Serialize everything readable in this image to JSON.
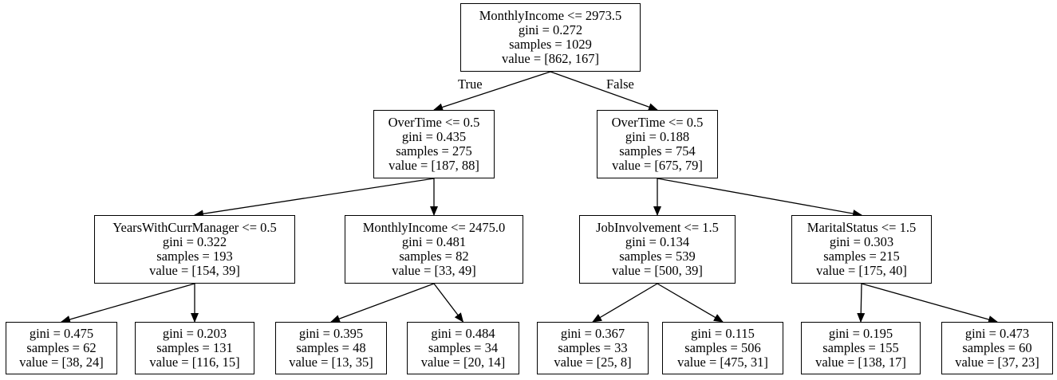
{
  "nodes": [
    {
      "id": "n0",
      "lines": [
        "MonthlyIncome <= 2973.5",
        "gini = 0.272",
        "samples = 1029",
        "value = [862, 167]"
      ]
    },
    {
      "id": "n1",
      "lines": [
        "OverTime <= 0.5",
        "gini = 0.435",
        "samples = 275",
        "value = [187, 88]"
      ]
    },
    {
      "id": "n2",
      "lines": [
        "OverTime <= 0.5",
        "gini = 0.188",
        "samples = 754",
        "value = [675, 79]"
      ]
    },
    {
      "id": "n3",
      "lines": [
        "YearsWithCurrManager <= 0.5",
        "gini = 0.322",
        "samples = 193",
        "value = [154, 39]"
      ]
    },
    {
      "id": "n4",
      "lines": [
        "MonthlyIncome <= 2475.0",
        "gini = 0.481",
        "samples = 82",
        "value = [33, 49]"
      ]
    },
    {
      "id": "n5",
      "lines": [
        "JobInvolvement <= 1.5",
        "gini = 0.134",
        "samples = 539",
        "value = [500, 39]"
      ]
    },
    {
      "id": "n6",
      "lines": [
        "MaritalStatus <= 1.5",
        "gini = 0.303",
        "samples = 215",
        "value = [175, 40]"
      ]
    },
    {
      "id": "n7",
      "lines": [
        "gini = 0.475",
        "samples = 62",
        "value = [38, 24]"
      ]
    },
    {
      "id": "n8",
      "lines": [
        "gini = 0.203",
        "samples = 131",
        "value = [116, 15]"
      ]
    },
    {
      "id": "n9",
      "lines": [
        "gini = 0.395",
        "samples = 48",
        "value = [13, 35]"
      ]
    },
    {
      "id": "n10",
      "lines": [
        "gini = 0.484",
        "samples = 34",
        "value = [20, 14]"
      ]
    },
    {
      "id": "n11",
      "lines": [
        "gini = 0.367",
        "samples = 33",
        "value = [25, 8]"
      ]
    },
    {
      "id": "n12",
      "lines": [
        "gini = 0.115",
        "samples = 506",
        "value = [475, 31]"
      ]
    },
    {
      "id": "n13",
      "lines": [
        "gini = 0.195",
        "samples = 155",
        "value = [138, 17]"
      ]
    },
    {
      "id": "n14",
      "lines": [
        "gini = 0.473",
        "samples = 60",
        "value = [37, 23]"
      ]
    }
  ],
  "edges": [
    {
      "from": "n0",
      "to": "n1",
      "label": "True"
    },
    {
      "from": "n0",
      "to": "n2",
      "label": "False"
    },
    {
      "from": "n1",
      "to": "n3",
      "label": ""
    },
    {
      "from": "n1",
      "to": "n4",
      "label": ""
    },
    {
      "from": "n2",
      "to": "n5",
      "label": ""
    },
    {
      "from": "n2",
      "to": "n6",
      "label": ""
    },
    {
      "from": "n3",
      "to": "n7",
      "label": ""
    },
    {
      "from": "n3",
      "to": "n8",
      "label": ""
    },
    {
      "from": "n4",
      "to": "n9",
      "label": ""
    },
    {
      "from": "n4",
      "to": "n10",
      "label": ""
    },
    {
      "from": "n5",
      "to": "n11",
      "label": ""
    },
    {
      "from": "n5",
      "to": "n12",
      "label": ""
    },
    {
      "from": "n6",
      "to": "n13",
      "label": ""
    },
    {
      "from": "n6",
      "to": "n14",
      "label": ""
    }
  ]
}
